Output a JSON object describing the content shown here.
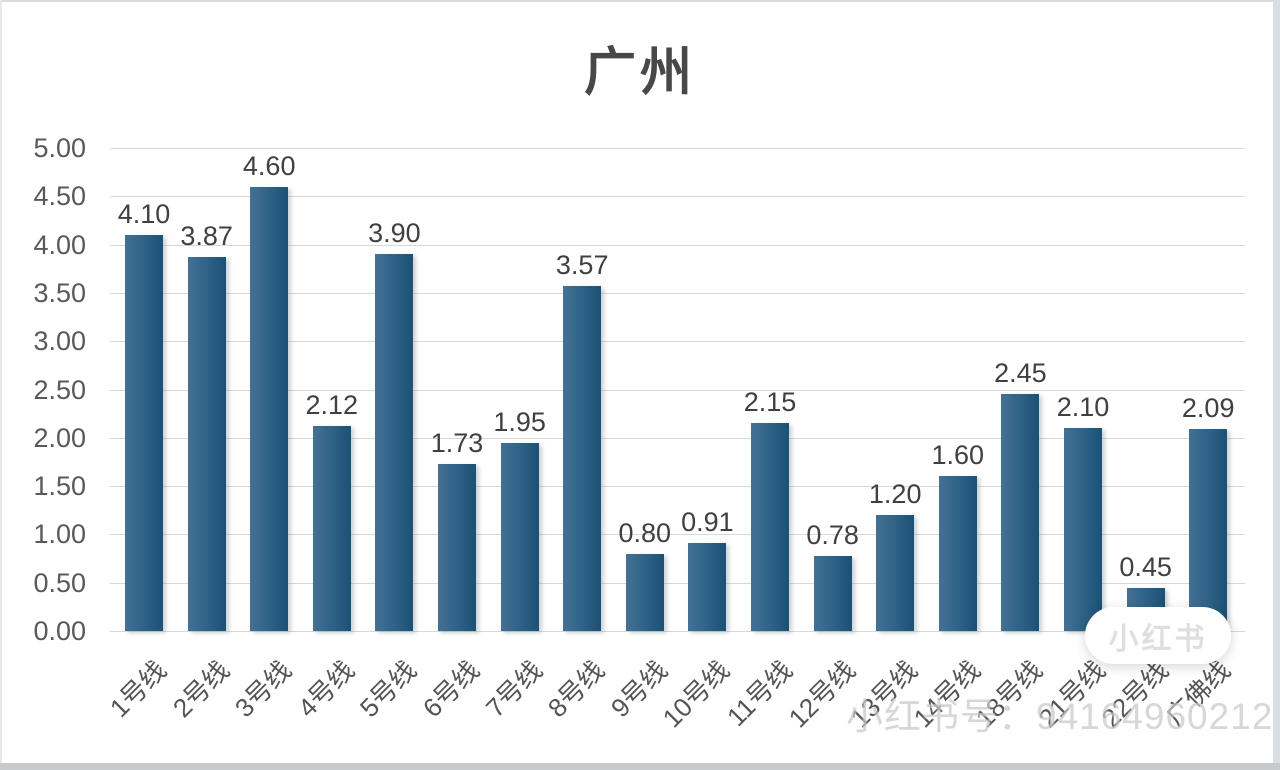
{
  "watermark": {
    "badge": "小红书",
    "account": "小红书号：94164960212"
  },
  "chart_data": {
    "type": "bar",
    "title": "广州",
    "categories": [
      "1号线",
      "2号线",
      "3号线",
      "4号线",
      "5号线",
      "6号线",
      "7号线",
      "8号线",
      "9号线",
      "10号线",
      "11号线",
      "12号线",
      "13号线",
      "14号线",
      "18号线",
      "21号线",
      "22号线",
      "广佛线"
    ],
    "values": [
      4.1,
      3.87,
      4.6,
      2.12,
      3.9,
      1.73,
      1.95,
      3.57,
      0.8,
      0.91,
      2.15,
      0.78,
      1.2,
      1.6,
      2.45,
      2.1,
      0.45,
      2.09
    ],
    "data_labels": [
      "4.10",
      "3.87",
      "4.60",
      "2.12",
      "3.90",
      "1.73",
      "1.95",
      "3.57",
      "0.80",
      "0.91",
      "2.15",
      "0.78",
      "1.20",
      "1.60",
      "2.45",
      "2.10",
      "0.45",
      "2.09"
    ],
    "xlabel": "",
    "ylabel": "",
    "ylim": [
      0,
      5
    ],
    "ytick_step": 0.5,
    "ytick_labels": [
      "5.00",
      "4.50",
      "4.00",
      "3.50",
      "3.00",
      "2.50",
      "2.00",
      "1.50",
      "1.00",
      "0.50",
      "0.00"
    ],
    "grid": true,
    "legend": false,
    "bar_color": "#2c6186",
    "bar_gradient": [
      "#447194",
      "#1b5174"
    ],
    "gridline_color": "#d8d8d8",
    "tick_label_color": "#58595b",
    "data_label_color": "#3f4040"
  }
}
